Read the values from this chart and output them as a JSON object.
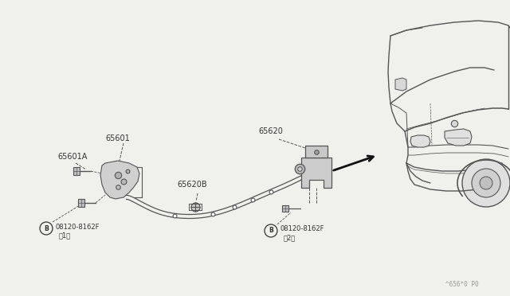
{
  "background_color": "#f0f0ec",
  "line_color": "#555555",
  "text_color": "#333333",
  "watermark": "^656*0 P0",
  "label_65601": "65601",
  "label_65601A": "65601A",
  "label_65620": "65620",
  "label_65620B": "65620B",
  "b_text_1a": "08120-8162F",
  "b_text_1b": "（1）",
  "b_text_2a": "08120-8162F",
  "b_text_2b": "（2）",
  "font_size_label": 7.0,
  "font_size_b": 5.5
}
